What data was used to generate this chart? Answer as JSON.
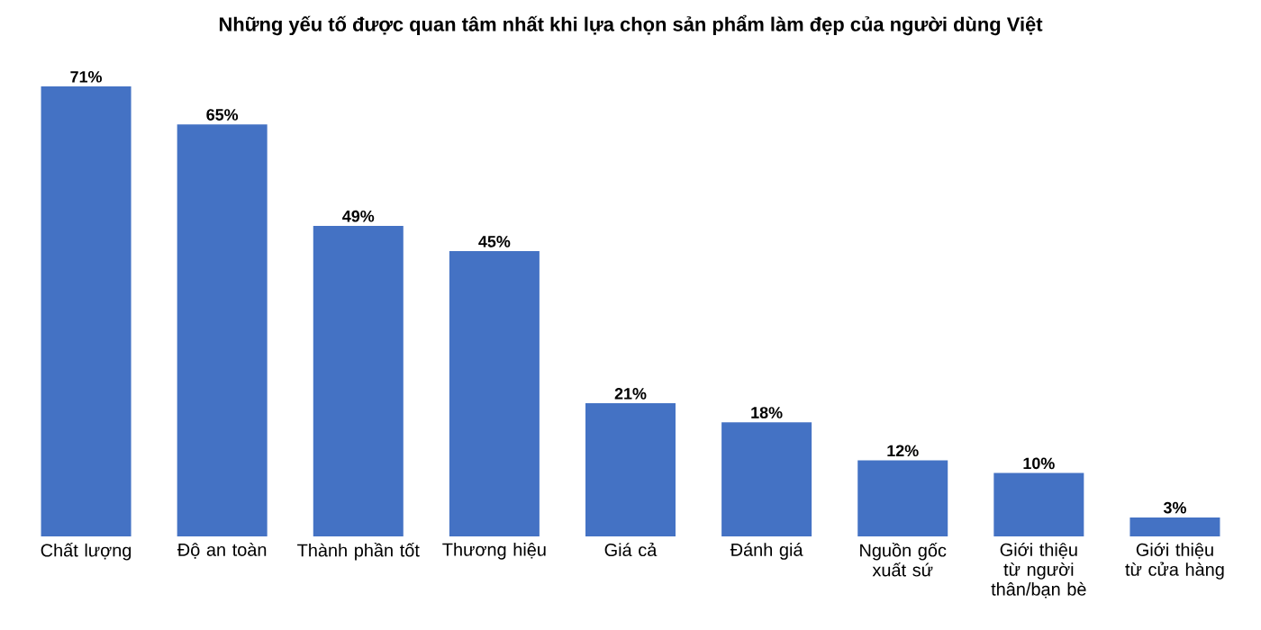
{
  "chart_data": {
    "type": "bar",
    "title": "Những yếu tố được quan tâm nhất khi lựa chọn sản phẩm làm đẹp của người dùng Việt",
    "categories": [
      "Chất lượng",
      "Độ an toàn",
      "Thành phần tốt",
      "Thương hiệu",
      "Giá cả",
      "Đánh giá",
      "Nguồn gốc xuất sứ",
      "Giới thiệu từ người thân/bạn bè",
      "Giới thiệu từ cửa hàng"
    ],
    "values": [
      71,
      65,
      49,
      45,
      21,
      18,
      12,
      10,
      3
    ],
    "value_labels": [
      "71%",
      "65%",
      "49%",
      "45%",
      "21%",
      "18%",
      "12%",
      "10%",
      "3%"
    ],
    "color": "#4472c4"
  }
}
